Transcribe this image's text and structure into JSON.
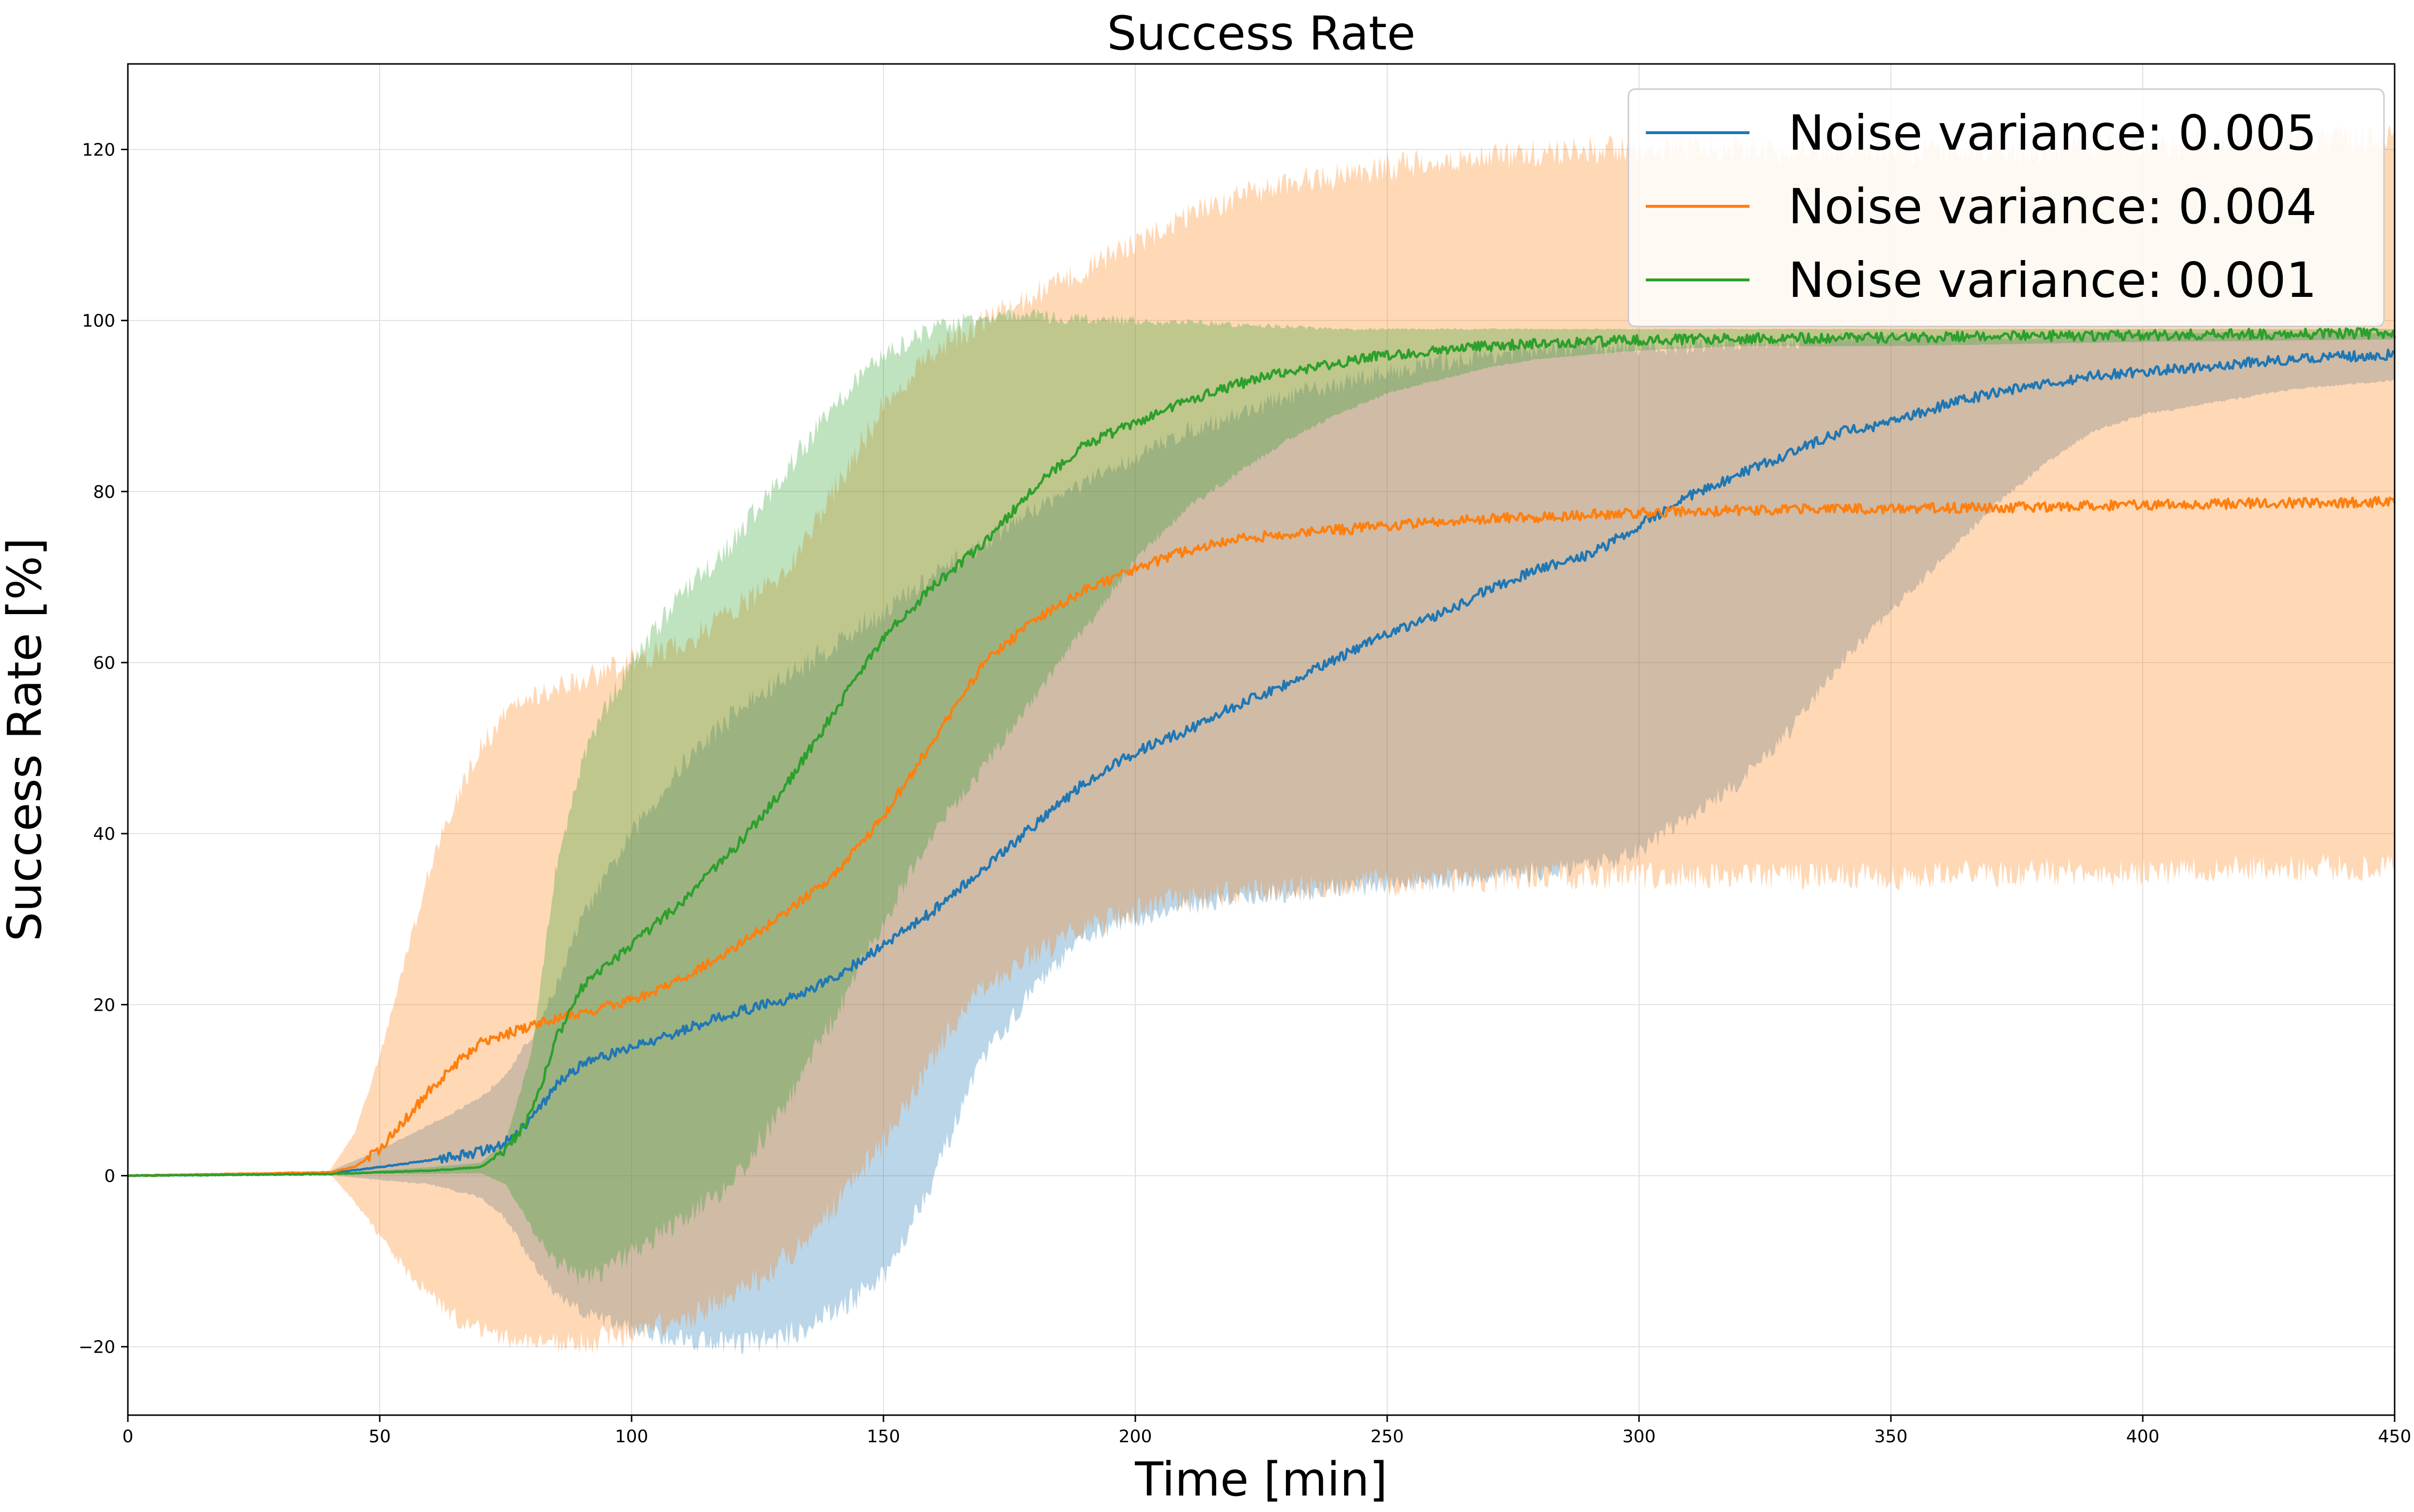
{
  "chart_data": {
    "type": "line",
    "title": "Success Rate",
    "xlabel": "Time [min]",
    "ylabel": "Success Rate [%]",
    "xlim": [
      0,
      450
    ],
    "ylim": [
      -28,
      130
    ],
    "xticks": [
      0,
      50,
      100,
      150,
      200,
      250,
      300,
      350,
      400,
      450
    ],
    "yticks": [
      -20,
      0,
      20,
      40,
      60,
      80,
      100,
      120
    ],
    "grid": true,
    "legend_position": "top-right",
    "series": [
      {
        "name": "Noise variance: 0.005",
        "color": "#1f77b4",
        "x": [
          0,
          40,
          50,
          60,
          70,
          75,
          80,
          85,
          90,
          100,
          110,
          120,
          130,
          140,
          150,
          160,
          170,
          180,
          190,
          200,
          210,
          220,
          230,
          240,
          250,
          260,
          270,
          280,
          290,
          300,
          310,
          320,
          330,
          340,
          350,
          360,
          370,
          380,
          390,
          400,
          410,
          420,
          430,
          440,
          450
        ],
        "mean": [
          0,
          0.3,
          1.0,
          1.8,
          2.8,
          4.0,
          6.5,
          10.5,
          13.0,
          15.0,
          17.0,
          19.0,
          20.5,
          23.0,
          27.0,
          31.0,
          36.0,
          41.0,
          46.0,
          49.5,
          52.0,
          55.0,
          57.5,
          60.5,
          63.5,
          65.5,
          68.5,
          71.0,
          72.5,
          76.0,
          79.5,
          82.0,
          84.5,
          87.0,
          88.0,
          90.0,
          91.5,
          92.5,
          93.5,
          94.0,
          94.5,
          95.0,
          95.5,
          95.8,
          96.0
        ],
        "upper": [
          0,
          0.5,
          3.0,
          6.0,
          9.0,
          12.0,
          16.0,
          22.0,
          30.0,
          40.0,
          48.0,
          54.0,
          58.0,
          62.0,
          66.0,
          70.0,
          74.0,
          78.0,
          81.0,
          84.0,
          87.0,
          89.0,
          91.0,
          92.5,
          94.0,
          95.0,
          96.0,
          96.5,
          97.0,
          97.0,
          97.0,
          97.5,
          97.5,
          98.0,
          98.0,
          98.0,
          98.0,
          98.0,
          98.5,
          98.5,
          98.5,
          98.5,
          98.5,
          98.5,
          98.5
        ],
        "lower": [
          0,
          0.1,
          -0.5,
          -1.0,
          -2.5,
          -5.0,
          -10.0,
          -14.0,
          -16.0,
          -18.0,
          -19.0,
          -19.5,
          -19.0,
          -16.0,
          -12.0,
          0.0,
          14.0,
          22.0,
          28.0,
          30.0,
          31.5,
          32.5,
          33.0,
          33.5,
          34.0,
          34.5,
          35.0,
          35.5,
          36.0,
          38.0,
          42.0,
          46.0,
          52.0,
          60.0,
          66.0,
          72.0,
          78.0,
          83.0,
          87.0,
          89.0,
          90.0,
          91.0,
          92.0,
          92.5,
          93.0
        ]
      },
      {
        "name": "Noise variance: 0.004",
        "color": "#ff7f0e",
        "x": [
          0,
          40,
          45,
          50,
          55,
          60,
          65,
          70,
          75,
          80,
          90,
          100,
          110,
          120,
          130,
          140,
          150,
          160,
          170,
          180,
          190,
          200,
          210,
          220,
          230,
          240,
          250,
          260,
          270,
          280,
          290,
          300,
          320,
          350,
          380,
          400,
          420,
          450
        ],
        "mean": [
          0,
          0.4,
          1.0,
          3.0,
          6.5,
          10.0,
          13.0,
          15.5,
          16.5,
          17.5,
          19.0,
          20.5,
          23.0,
          26.5,
          30.5,
          35.0,
          42.0,
          51.0,
          60.0,
          65.0,
          68.5,
          71.0,
          73.0,
          74.5,
          75.0,
          75.5,
          76.0,
          76.5,
          76.8,
          77.0,
          77.3,
          77.5,
          77.8,
          78.0,
          78.2,
          78.4,
          78.6,
          78.8
        ],
        "upper": [
          0,
          0.5,
          5.0,
          14.0,
          25.0,
          36.0,
          44.0,
          50.0,
          54.0,
          56.0,
          58.0,
          60.0,
          62.0,
          66.0,
          70.0,
          80.0,
          90.0,
          96.0,
          100.0,
          103.0,
          106.0,
          109.0,
          112.0,
          114.5,
          116.0,
          117.0,
          118.0,
          118.5,
          119.0,
          119.5,
          120.0,
          120.0,
          120.0,
          120.0,
          120.0,
          120.5,
          121.0,
          121.5
        ],
        "lower": [
          0,
          0.3,
          -3.0,
          -7.0,
          -11.0,
          -14.0,
          -16.5,
          -18.0,
          -19.0,
          -19.5,
          -19.5,
          -18.5,
          -17.0,
          -14.0,
          -10.0,
          -4.0,
          4.0,
          14.0,
          22.0,
          26.0,
          29.0,
          31.0,
          32.5,
          33.0,
          33.5,
          34.0,
          34.2,
          34.5,
          34.7,
          35.0,
          35.0,
          35.0,
          35.0,
          35.0,
          35.5,
          35.5,
          36.0,
          36.0
        ]
      },
      {
        "name": "Noise variance: 0.001",
        "color": "#2ca02c",
        "x": [
          0,
          40,
          50,
          60,
          70,
          75,
          80,
          85,
          90,
          95,
          100,
          110,
          120,
          130,
          140,
          150,
          160,
          170,
          180,
          190,
          200,
          210,
          220,
          230,
          240,
          250,
          260,
          270,
          280,
          290,
          300,
          320,
          350,
          380,
          400,
          420,
          450
        ],
        "mean": [
          0,
          0.2,
          0.4,
          0.6,
          1.0,
          3.0,
          7.0,
          16.0,
          22.0,
          24.5,
          27.0,
          32.0,
          38.0,
          45.0,
          54.0,
          63.0,
          69.0,
          74.0,
          80.5,
          85.5,
          88.0,
          90.5,
          92.5,
          94.0,
          95.0,
          96.0,
          96.5,
          97.0,
          97.3,
          97.5,
          97.7,
          97.9,
          98.0,
          98.2,
          98.3,
          98.4,
          98.5
        ],
        "upper": [
          0,
          0.3,
          0.6,
          1.0,
          1.5,
          4.0,
          14.0,
          36.0,
          48.0,
          55.0,
          60.0,
          68.0,
          74.0,
          82.0,
          90.0,
          96.0,
          99.0,
          100.5,
          100.5,
          100.2,
          100.0,
          99.8,
          99.5,
          99.3,
          99.0,
          99.0,
          99.0,
          99.0,
          99.0,
          99.0,
          99.0,
          99.0,
          99.0,
          99.0,
          99.0,
          99.0,
          99.0
        ],
        "lower": [
          0,
          0.1,
          0.2,
          0.2,
          0.3,
          -1.0,
          -6.0,
          -10.0,
          -12.0,
          -11.0,
          -9.0,
          -5.0,
          -1.0,
          8.0,
          18.0,
          30.0,
          40.0,
          48.0,
          56.0,
          64.0,
          72.0,
          78.0,
          82.0,
          86.0,
          89.0,
          91.5,
          93.0,
          94.5,
          95.5,
          96.0,
          96.5,
          97.0,
          97.0,
          97.3,
          97.5,
          97.6,
          97.8
        ]
      }
    ]
  }
}
